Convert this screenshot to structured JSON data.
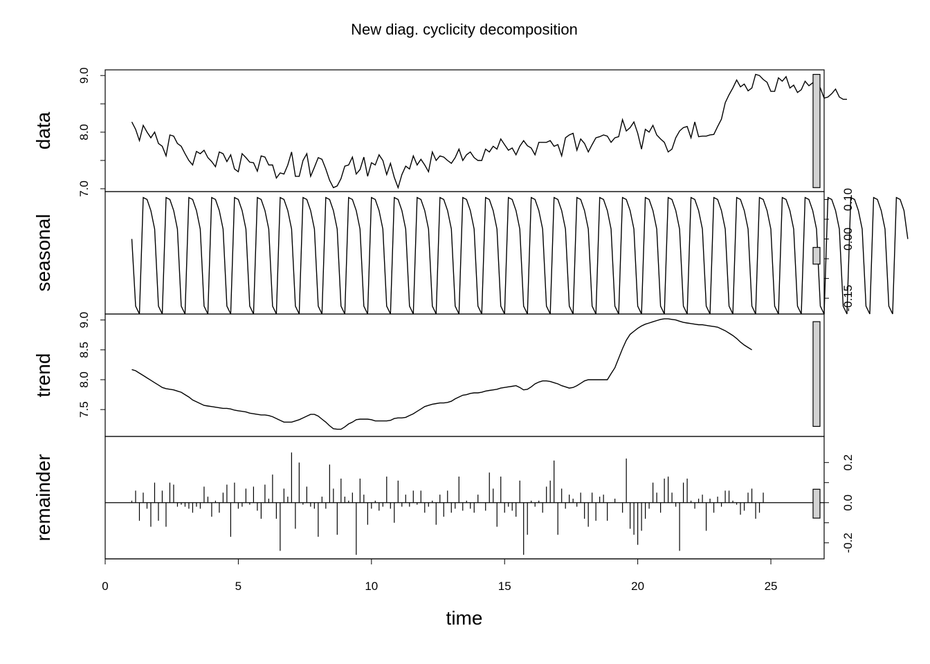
{
  "chart_data": {
    "type": "line",
    "title": "New diag. cyclicity decomposition",
    "xlabel": "time",
    "xlim": [
      0,
      27
    ],
    "x_ticks": [
      "0",
      "5",
      "10",
      "15",
      "20",
      "25"
    ],
    "x_tick_values": [
      0,
      5,
      10,
      15,
      20,
      25
    ],
    "frequency": 7,
    "start": 1,
    "panels": [
      {
        "name": "data",
        "ylabel": "data",
        "kind": "line",
        "ylim": [
          6.95,
          9.1
        ],
        "tick_side": "left",
        "ticks": [
          7.0,
          8.0,
          9.0
        ],
        "tick_labels": [
          "7.0",
          "8.0",
          "9.0"
        ],
        "minor_ticks": [
          7.5,
          8.5
        ],
        "values": [
          8.18,
          8.05,
          7.85,
          8.12,
          8.0,
          7.9,
          8.0,
          7.8,
          7.75,
          7.58,
          7.95,
          7.93,
          7.8,
          7.75,
          7.62,
          7.5,
          7.42,
          7.66,
          7.62,
          7.68,
          7.55,
          7.48,
          7.39,
          7.65,
          7.62,
          7.48,
          7.6,
          7.35,
          7.3,
          7.62,
          7.55,
          7.47,
          7.46,
          7.31,
          7.58,
          7.56,
          7.42,
          7.42,
          7.19,
          7.28,
          7.26,
          7.42,
          7.65,
          7.22,
          7.22,
          7.5,
          7.62,
          7.22,
          7.38,
          7.55,
          7.52,
          7.35,
          7.15,
          7.02,
          7.05,
          7.18,
          7.4,
          7.42,
          7.56,
          7.26,
          7.34,
          7.56,
          7.22,
          7.46,
          7.42,
          7.6,
          7.5,
          7.25,
          7.45,
          7.2,
          7.02,
          7.25,
          7.4,
          7.35,
          7.58,
          7.42,
          7.52,
          7.42,
          7.3,
          7.65,
          7.5,
          7.58,
          7.56,
          7.5,
          7.45,
          7.55,
          7.7,
          7.5,
          7.6,
          7.65,
          7.55,
          7.5,
          7.5,
          7.7,
          7.65,
          7.75,
          7.7,
          7.88,
          7.78,
          7.68,
          7.72,
          7.6,
          7.75,
          7.85,
          7.76,
          7.72,
          7.6,
          7.82,
          7.82,
          7.82,
          7.85,
          7.75,
          7.78,
          7.58,
          7.9,
          7.95,
          7.98,
          7.68,
          7.88,
          7.8,
          7.65,
          7.78,
          7.9,
          7.92,
          7.95,
          7.93,
          7.82,
          7.9,
          7.92,
          8.22,
          8.02,
          8.08,
          8.18,
          7.98,
          7.7,
          8.05,
          8.0,
          8.12,
          7.95,
          7.88,
          7.82,
          7.65,
          7.7,
          7.9,
          8.02,
          8.08,
          8.1,
          7.9,
          8.18,
          7.92,
          7.93,
          7.93,
          7.95,
          7.96,
          8.1,
          8.23,
          8.52,
          8.66,
          8.78,
          8.92,
          8.8,
          8.85,
          8.73,
          8.78,
          9.02,
          9.0,
          8.93,
          8.88,
          8.72,
          8.72,
          8.96,
          8.9,
          8.98,
          8.78,
          8.83,
          8.7,
          8.75,
          8.9,
          8.82,
          8.87,
          8.89,
          8.78,
          8.6,
          8.62,
          8.68,
          8.76,
          8.62,
          8.58,
          8.58
        ]
      },
      {
        "name": "seasonal",
        "ylabel": "seasonal",
        "kind": "line",
        "ylim": [
          -0.19,
          0.12
        ],
        "tick_side": "right",
        "ticks": [
          -0.15,
          0.0,
          0.1
        ],
        "tick_labels": [
          "-0.15",
          "0.00",
          "0.10"
        ],
        "minor_ticks": [
          -0.1,
          -0.05,
          0.05
        ],
        "values": [
          0.0,
          -0.17,
          -0.19,
          0.105,
          0.1,
          0.072,
          0.025,
          -0.17,
          -0.19,
          0.105,
          0.1,
          0.072,
          0.025,
          -0.17,
          -0.19,
          0.105,
          0.1,
          0.072,
          0.025,
          -0.17,
          -0.19,
          0.105,
          0.1,
          0.072,
          0.025,
          -0.17,
          -0.19,
          0.105,
          0.1,
          0.072,
          0.025,
          -0.17,
          -0.19,
          0.105,
          0.1,
          0.072,
          0.025,
          -0.17,
          -0.19,
          0.105,
          0.1,
          0.072,
          0.025,
          -0.17,
          -0.19,
          0.105,
          0.1,
          0.072,
          0.025,
          -0.17,
          -0.19,
          0.105,
          0.1,
          0.072,
          0.025,
          -0.17,
          -0.19,
          0.105,
          0.1,
          0.072,
          0.025,
          -0.17,
          -0.19,
          0.105,
          0.1,
          0.072,
          0.025,
          -0.17,
          -0.19,
          0.105,
          0.1,
          0.072,
          0.025,
          -0.17,
          -0.19,
          0.105,
          0.1,
          0.072,
          0.025,
          -0.17,
          -0.19,
          0.105,
          0.1,
          0.072,
          0.025,
          -0.17,
          -0.19,
          0.105,
          0.1,
          0.072,
          0.025,
          -0.17,
          -0.19,
          0.105,
          0.1,
          0.072,
          0.025,
          -0.17,
          -0.19,
          0.105,
          0.1,
          0.072,
          0.025,
          -0.17,
          -0.19,
          0.105,
          0.1,
          0.072,
          0.025,
          -0.17,
          -0.19,
          0.105,
          0.1,
          0.072,
          0.025,
          -0.17,
          -0.19,
          0.105,
          0.1,
          0.072,
          0.025,
          -0.17,
          -0.19,
          0.105,
          0.1,
          0.072,
          0.025,
          -0.17,
          -0.19,
          0.105,
          0.1,
          0.072,
          0.025,
          -0.17,
          -0.19,
          0.105,
          0.1,
          0.072,
          0.025,
          -0.17,
          -0.19,
          0.105,
          0.1,
          0.072,
          0.025,
          -0.17,
          -0.19,
          0.105,
          0.1,
          0.072,
          0.025,
          -0.17,
          -0.19,
          0.105,
          0.1,
          0.072,
          0.025,
          -0.17,
          -0.19,
          0.105,
          0.1,
          0.072,
          0.025,
          -0.17,
          -0.19,
          0.105,
          0.1,
          0.072,
          0.025,
          -0.17,
          -0.19,
          0.105,
          0.1,
          0.072,
          0.025,
          -0.17,
          -0.19,
          0.105,
          0.1,
          0.072,
          0.025,
          -0.17,
          -0.19,
          0.105,
          0.1,
          0.072,
          0.025,
          -0.17,
          -0.19,
          0.105,
          0.1,
          0.072,
          0.025,
          -0.17,
          -0.19,
          0.105,
          0.1,
          0.072,
          0.025,
          -0.17,
          -0.19,
          0.105,
          0.1,
          0.072,
          0.0
        ]
      },
      {
        "name": "trend",
        "ylabel": "trend",
        "kind": "line",
        "ylim": [
          7.05,
          9.1
        ],
        "tick_side": "left",
        "ticks": [
          7.5,
          8.0,
          8.5,
          9.0
        ],
        "tick_labels": [
          "7.5",
          "8.0",
          "8.5",
          "9.0"
        ],
        "minor_ticks": [],
        "values": [
          8.17,
          8.15,
          8.11,
          8.07,
          8.03,
          7.99,
          7.95,
          7.91,
          7.87,
          7.85,
          7.84,
          7.83,
          7.81,
          7.79,
          7.75,
          7.71,
          7.66,
          7.63,
          7.6,
          7.57,
          7.56,
          7.55,
          7.54,
          7.53,
          7.52,
          7.52,
          7.51,
          7.49,
          7.48,
          7.47,
          7.46,
          7.44,
          7.43,
          7.42,
          7.41,
          7.41,
          7.4,
          7.38,
          7.35,
          7.32,
          7.29,
          7.29,
          7.29,
          7.31,
          7.33,
          7.36,
          7.39,
          7.42,
          7.42,
          7.39,
          7.34,
          7.29,
          7.23,
          7.18,
          7.17,
          7.17,
          7.21,
          7.26,
          7.29,
          7.33,
          7.34,
          7.34,
          7.34,
          7.33,
          7.31,
          7.31,
          7.31,
          7.31,
          7.32,
          7.35,
          7.36,
          7.36,
          7.37,
          7.4,
          7.43,
          7.47,
          7.51,
          7.55,
          7.57,
          7.59,
          7.6,
          7.61,
          7.61,
          7.62,
          7.64,
          7.68,
          7.71,
          7.74,
          7.75,
          7.77,
          7.78,
          7.78,
          7.79,
          7.81,
          7.82,
          7.83,
          7.84,
          7.86,
          7.87,
          7.88,
          7.89,
          7.9,
          7.87,
          7.83,
          7.84,
          7.88,
          7.93,
          7.96,
          7.98,
          7.98,
          7.97,
          7.95,
          7.93,
          7.9,
          7.88,
          7.86,
          7.87,
          7.9,
          7.94,
          7.98,
          8.0,
          8.0,
          8.0,
          8.0,
          8.0,
          8.0,
          8.1,
          8.2,
          8.36,
          8.52,
          8.66,
          8.76,
          8.81,
          8.86,
          8.9,
          8.93,
          8.95,
          8.97,
          8.99,
          9.01,
          9.02,
          9.02,
          9.01,
          9.0,
          8.98,
          8.96,
          8.95,
          8.94,
          8.93,
          8.92,
          8.92,
          8.91,
          8.9,
          8.89,
          8.88,
          8.85,
          8.82,
          8.78,
          8.74,
          8.69,
          8.63,
          8.58,
          8.54,
          8.5
        ]
      },
      {
        "name": "remainder",
        "ylabel": "remainder",
        "kind": "bars",
        "ylim": [
          -0.28,
          0.33
        ],
        "tick_side": "right",
        "ticks": [
          -0.2,
          0.0,
          0.2
        ],
        "tick_labels": [
          "-0.2",
          "0.0",
          "0.2"
        ],
        "minor_ticks": [
          -0.1,
          0.1
        ],
        "values": [
          0.01,
          0.06,
          -0.09,
          0.05,
          -0.03,
          -0.12,
          0.1,
          -0.09,
          0.06,
          -0.12,
          0.1,
          0.09,
          -0.02,
          -0.01,
          -0.02,
          -0.03,
          -0.05,
          -0.02,
          -0.03,
          0.08,
          0.03,
          -0.07,
          0.01,
          -0.05,
          0.05,
          0.09,
          -0.17,
          0.1,
          -0.03,
          -0.02,
          0.07,
          -0.01,
          0.08,
          -0.04,
          -0.08,
          0.09,
          0.02,
          0.14,
          -0.08,
          -0.24,
          0.07,
          0.03,
          0.25,
          -0.13,
          0.2,
          -0.01,
          0.08,
          -0.02,
          -0.03,
          -0.17,
          0.03,
          -0.03,
          0.19,
          0.07,
          -0.16,
          0.12,
          0.03,
          0.01,
          0.05,
          -0.26,
          0.12,
          0.04,
          -0.11,
          -0.03,
          0.01,
          -0.04,
          -0.02,
          0.13,
          -0.03,
          -0.1,
          0.11,
          -0.02,
          0.04,
          -0.02,
          0.06,
          -0.01,
          0.06,
          -0.05,
          -0.02,
          0.01,
          -0.11,
          0.04,
          -0.07,
          0.06,
          -0.05,
          -0.03,
          0.13,
          -0.04,
          0.01,
          -0.03,
          -0.05,
          0.04,
          0.0,
          -0.04,
          0.15,
          0.07,
          -0.12,
          0.13,
          -0.05,
          -0.02,
          -0.04,
          -0.07,
          0.11,
          -0.26,
          -0.16,
          0.01,
          -0.02,
          0.01,
          -0.05,
          0.08,
          0.11,
          0.21,
          -0.16,
          0.07,
          -0.03,
          0.04,
          0.02,
          -0.02,
          0.05,
          -0.08,
          -0.12,
          0.05,
          -0.09,
          0.03,
          0.04,
          -0.09,
          0.0,
          0.02,
          0.0,
          -0.05,
          0.22,
          -0.13,
          -0.16,
          -0.21,
          -0.14,
          -0.08,
          -0.03,
          0.1,
          0.05,
          -0.05,
          0.12,
          0.13,
          0.05,
          -0.02,
          -0.24,
          0.1,
          0.12,
          0.01,
          -0.03,
          0.02,
          0.04,
          -0.14,
          0.02,
          -0.05,
          0.03,
          -0.02,
          0.06,
          0.06,
          0.01,
          -0.01,
          -0.06,
          -0.04,
          0.05,
          0.07,
          -0.08,
          -0.05,
          0.05
        ]
      }
    ],
    "range_bar_color": "#d3d3d3"
  }
}
